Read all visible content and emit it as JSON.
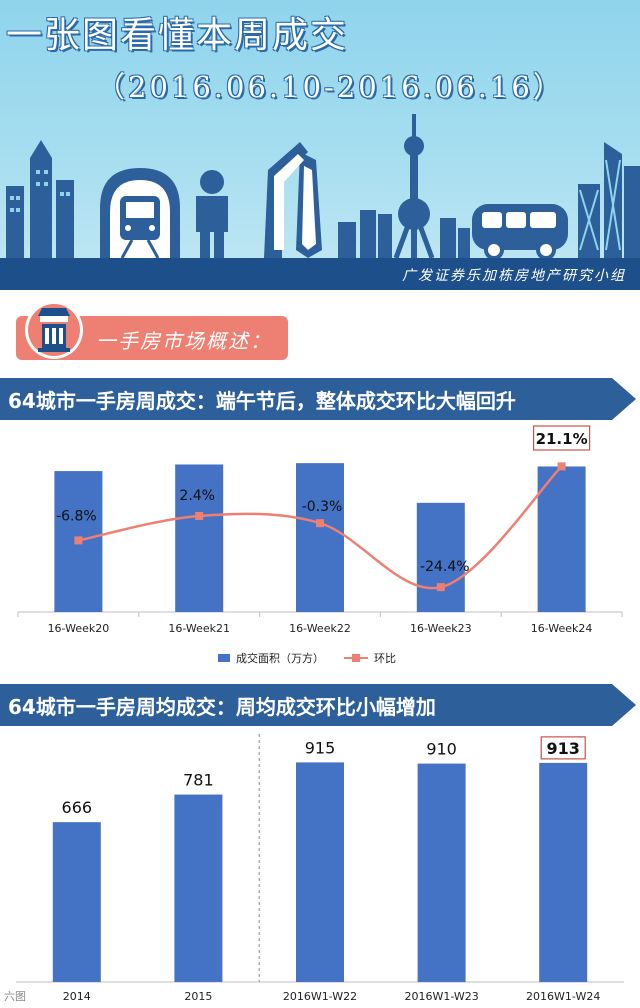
{
  "header": {
    "title": "一张图看懂本周成交",
    "date_range": "（2016.06.10-2016.06.16）",
    "credit": "广发证券乐加栋房地产研究小组"
  },
  "section": {
    "label": "一手房市场概述："
  },
  "colors": {
    "bar": "#4472c4",
    "line": "#ee7f73",
    "banner": "#2d5f9a",
    "header_band": "#1d4f8a"
  },
  "icons": [
    "building-icon",
    "train-icon",
    "person-icon",
    "bus-icon",
    "tower-icon"
  ],
  "watermark": "六图",
  "chart_data": [
    {
      "type": "bar",
      "title": "64城市一手房周成交：端午节后，整体成交环比大幅回升",
      "categories": [
        "16-Week20",
        "16-Week21",
        "16-Week22",
        "16-Week23",
        "16-Week24"
      ],
      "series": [
        {
          "name": "成交面积（万方）",
          "type": "bar",
          "values": [
            213,
            223,
            225,
            165,
            220
          ]
        },
        {
          "name": "环比",
          "type": "line",
          "values": [
            -6.8,
            2.4,
            -0.3,
            -24.4,
            21.1
          ],
          "labels": [
            "-6.8%",
            "2.4%",
            "-0.3%",
            "-24.4%",
            "21.1%"
          ],
          "highlight_index": 4
        }
      ],
      "legend": "bottom-center"
    },
    {
      "type": "bar",
      "title": "64城市一手房周均成交：周均成交环比小幅增加",
      "categories": [
        "2014",
        "2015",
        "2016W1-W22",
        "2016W1-W23",
        "2016W1-W24"
      ],
      "values": [
        666,
        781,
        915,
        910,
        913
      ],
      "labels": [
        "666",
        "781",
        "915",
        "910",
        "913"
      ],
      "highlight_index": 4,
      "divider_after_index": 1
    }
  ]
}
